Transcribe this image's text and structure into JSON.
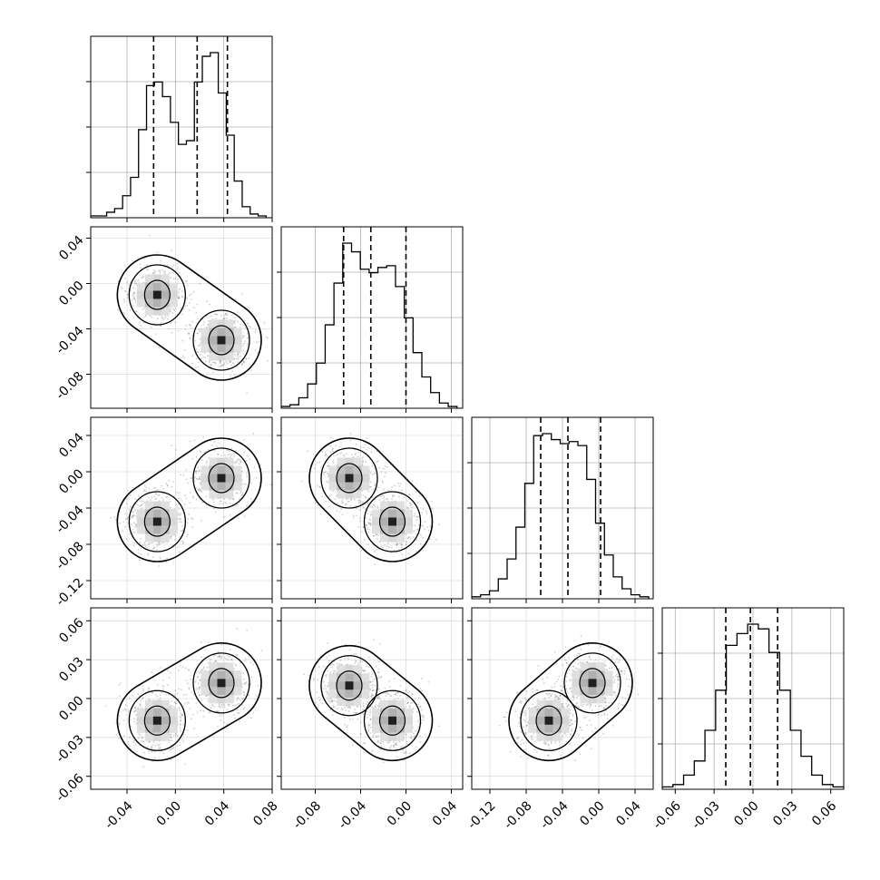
{
  "chart_data": {
    "type": "corner",
    "n_params": 4,
    "quantile_lines": "dashed",
    "grid": true,
    "axes": [
      {
        "range": [
          -0.07,
          0.08
        ],
        "ticks": [
          "-0.04",
          "0.00",
          "0.04",
          "0.08"
        ],
        "tick_values": [
          -0.04,
          0.0,
          0.04,
          0.08
        ]
      },
      {
        "range": [
          -0.11,
          0.05
        ],
        "ticks": [
          "-0.08",
          "-0.04",
          "0.00",
          "0.04"
        ],
        "tick_values": [
          -0.08,
          -0.04,
          0.0,
          0.04
        ]
      },
      {
        "range": [
          -0.14,
          0.06
        ],
        "ticks": [
          "-0.12",
          "-0.08",
          "-0.04",
          "0.00",
          "0.04"
        ],
        "tick_values": [
          -0.12,
          -0.08,
          -0.04,
          0.0,
          0.04
        ]
      },
      {
        "range": [
          -0.07,
          0.07
        ],
        "ticks": [
          "-0.06",
          "-0.03",
          "0.00",
          "0.03",
          "0.06"
        ],
        "tick_values": [
          -0.06,
          -0.03,
          0.0,
          0.03,
          0.06
        ]
      }
    ],
    "quantiles": [
      [
        -0.018,
        0.018,
        0.043
      ],
      [
        -0.055,
        -0.031,
        0.0
      ],
      [
        -0.064,
        -0.034,
        0.002
      ],
      [
        -0.021,
        -0.002,
        0.019
      ]
    ],
    "histograms": [
      {
        "edges": [
          -0.07,
          0.075
        ],
        "counts": [
          1,
          1,
          3,
          5,
          12,
          22,
          48,
          72,
          74,
          66,
          52,
          40,
          42,
          74,
          88,
          90,
          68,
          45,
          20,
          6,
          2,
          1
        ]
      },
      {
        "edges": [
          -0.11,
          0.045
        ],
        "counts": [
          1,
          2,
          6,
          14,
          26,
          48,
          72,
          95,
          90,
          80,
          78,
          81,
          82,
          70,
          52,
          32,
          18,
          9,
          3,
          1
        ]
      },
      {
        "edges": [
          -0.14,
          0.055
        ],
        "counts": [
          1,
          2,
          4,
          10,
          20,
          36,
          58,
          82,
          83,
          80,
          78,
          79,
          77,
          60,
          38,
          22,
          11,
          5,
          2,
          1
        ]
      },
      {
        "edges": [
          -0.07,
          0.07
        ],
        "counts": [
          1,
          2,
          6,
          12,
          25,
          42,
          61,
          66,
          70,
          68,
          58,
          42,
          25,
          14,
          6,
          2,
          1
        ]
      }
    ],
    "panels_2d": [
      {
        "row": 1,
        "col": 0,
        "modes": [
          [
            -0.015,
            -0.01
          ],
          [
            0.038,
            -0.05
          ]
        ]
      },
      {
        "row": 2,
        "col": 0,
        "modes": [
          [
            -0.015,
            -0.055
          ],
          [
            0.038,
            -0.007
          ]
        ]
      },
      {
        "row": 2,
        "col": 1,
        "modes": [
          [
            -0.05,
            -0.007
          ],
          [
            -0.012,
            -0.055
          ]
        ]
      },
      {
        "row": 3,
        "col": 0,
        "modes": [
          [
            -0.015,
            -0.017
          ],
          [
            0.038,
            0.012
          ]
        ]
      },
      {
        "row": 3,
        "col": 1,
        "modes": [
          [
            -0.05,
            0.01
          ],
          [
            -0.012,
            -0.017
          ]
        ]
      },
      {
        "row": 3,
        "col": 2,
        "modes": [
          [
            -0.055,
            -0.017
          ],
          [
            -0.007,
            0.012
          ]
        ]
      }
    ]
  }
}
